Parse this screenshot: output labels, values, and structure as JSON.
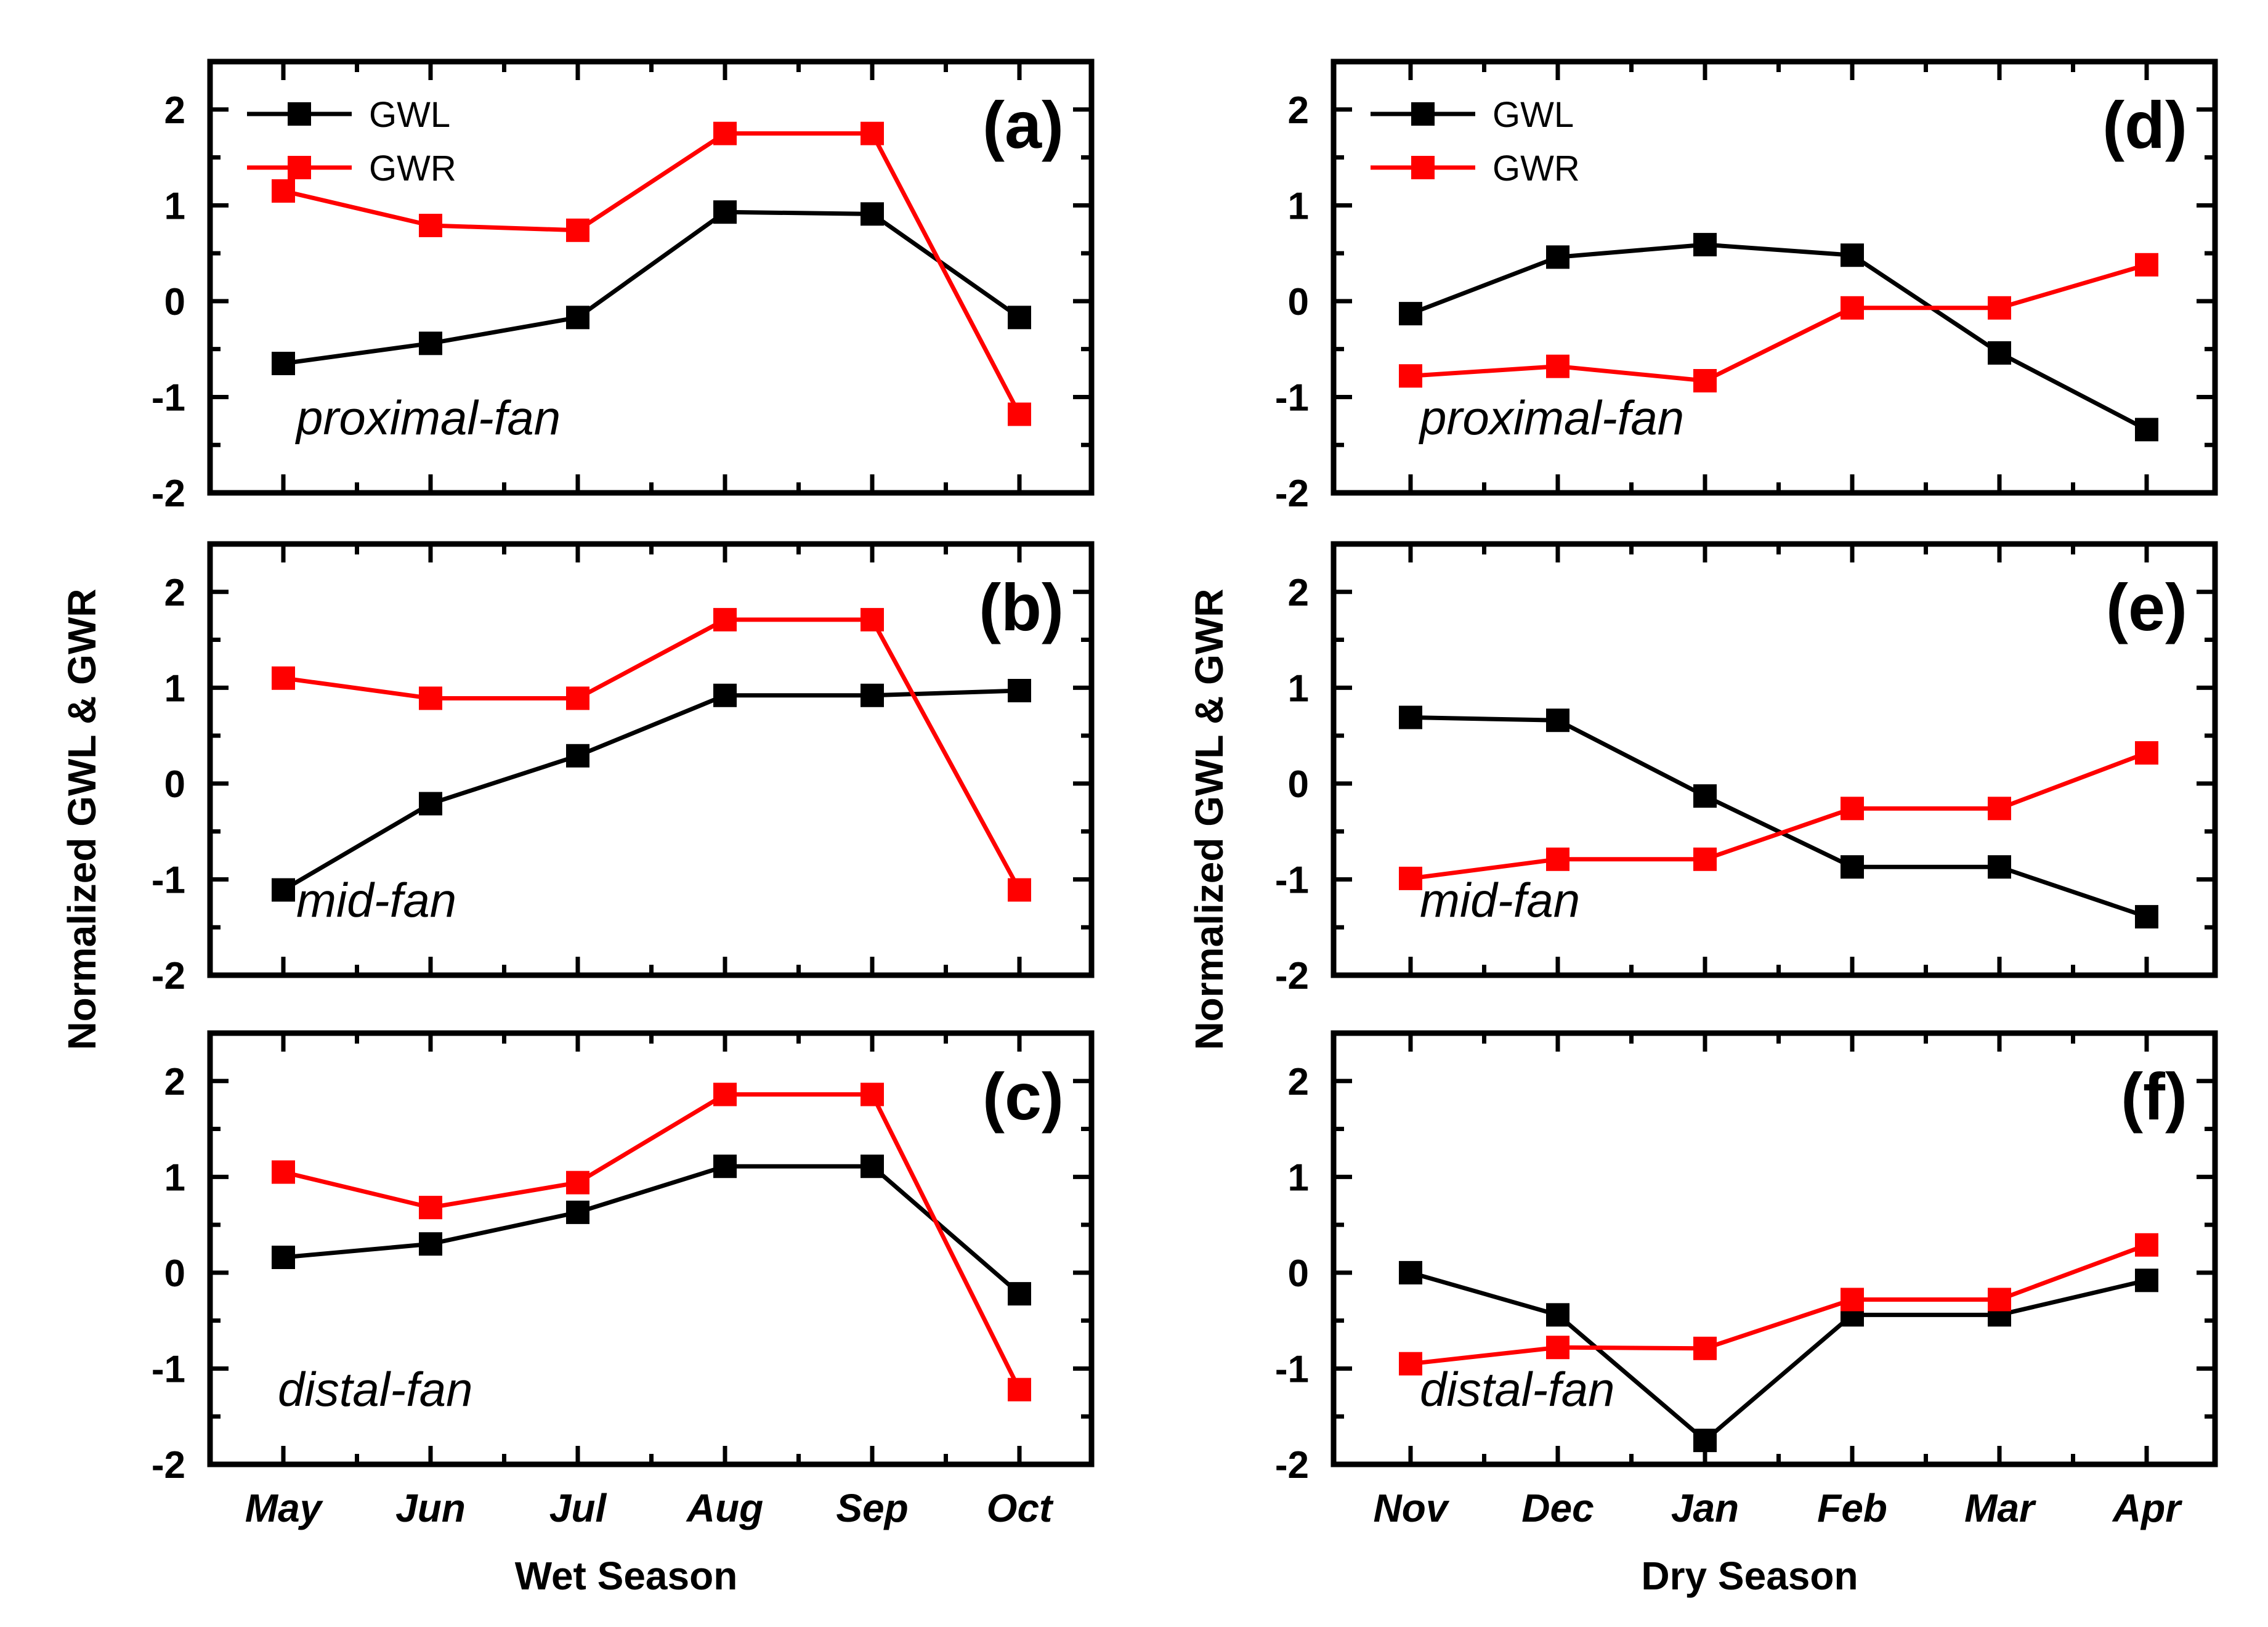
{
  "figure": {
    "ylabel": "Normalized GWL & GWR",
    "ylim": [
      -2,
      2.5
    ],
    "yticks": [
      -2,
      -1,
      0,
      1,
      2
    ],
    "colors": {
      "GWL": "#000000",
      "GWR": "#ff0000"
    }
  },
  "columns": [
    {
      "xlabel": "Wet Season",
      "months": [
        "May",
        "Jun",
        "Jul",
        "Aug",
        "Sep",
        "Oct"
      ]
    },
    {
      "xlabel": "Dry Season",
      "months": [
        "Nov",
        "Dec",
        "Jan",
        "Feb",
        "Mar",
        "Apr"
      ]
    }
  ],
  "chart_data": [
    {
      "type": "line",
      "panel": "(a)",
      "region": "proximal-fan",
      "column": 0,
      "row": 0,
      "legend": true,
      "categories": [
        "May",
        "Jun",
        "Jul",
        "Aug",
        "Sep",
        "Oct"
      ],
      "series": [
        {
          "name": "GWL",
          "values": [
            -0.65,
            -0.44,
            -0.17,
            0.93,
            0.91,
            -0.17
          ]
        },
        {
          "name": "GWR",
          "values": [
            1.15,
            0.79,
            0.74,
            1.75,
            1.75,
            -1.18
          ]
        }
      ]
    },
    {
      "type": "line",
      "panel": "(b)",
      "region": "mid-fan",
      "column": 0,
      "row": 1,
      "legend": false,
      "categories": [
        "May",
        "Jun",
        "Jul",
        "Aug",
        "Sep",
        "Oct"
      ],
      "series": [
        {
          "name": "GWL",
          "values": [
            -1.11,
            -0.21,
            0.29,
            0.92,
            0.92,
            0.97
          ]
        },
        {
          "name": "GWR",
          "values": [
            1.1,
            0.89,
            0.89,
            1.71,
            1.71,
            -1.11
          ]
        }
      ]
    },
    {
      "type": "line",
      "panel": "(c)",
      "region": "distal-fan",
      "column": 0,
      "row": 2,
      "legend": false,
      "categories": [
        "May",
        "Jun",
        "Jul",
        "Aug",
        "Sep",
        "Oct"
      ],
      "series": [
        {
          "name": "GWL",
          "values": [
            0.16,
            0.3,
            0.63,
            1.11,
            1.11,
            -0.22
          ]
        },
        {
          "name": "GWR",
          "values": [
            1.05,
            0.68,
            0.94,
            1.86,
            1.86,
            -1.22
          ]
        }
      ]
    },
    {
      "type": "line",
      "panel": "(d)",
      "region": "proximal-fan",
      "column": 1,
      "row": 0,
      "legend": true,
      "categories": [
        "Nov",
        "Dec",
        "Jan",
        "Feb",
        "Mar",
        "Apr"
      ],
      "series": [
        {
          "name": "GWL",
          "values": [
            -0.13,
            0.46,
            0.59,
            0.48,
            -0.54,
            -1.34
          ]
        },
        {
          "name": "GWR",
          "values": [
            -0.78,
            -0.68,
            -0.83,
            -0.07,
            -0.07,
            0.38
          ]
        }
      ]
    },
    {
      "type": "line",
      "panel": "(e)",
      "region": "mid-fan",
      "column": 1,
      "row": 1,
      "legend": false,
      "categories": [
        "Nov",
        "Dec",
        "Jan",
        "Feb",
        "Mar",
        "Apr"
      ],
      "series": [
        {
          "name": "GWL",
          "values": [
            0.69,
            0.66,
            -0.13,
            -0.87,
            -0.87,
            -1.39
          ]
        },
        {
          "name": "GWR",
          "values": [
            -0.99,
            -0.79,
            -0.79,
            -0.26,
            -0.26,
            0.32
          ]
        }
      ]
    },
    {
      "type": "line",
      "panel": "(f)",
      "region": "distal-fan",
      "column": 1,
      "row": 2,
      "legend": false,
      "categories": [
        "Nov",
        "Dec",
        "Jan",
        "Feb",
        "Mar",
        "Apr"
      ],
      "series": [
        {
          "name": "GWL",
          "values": [
            0.0,
            -0.44,
            -1.75,
            -0.44,
            -0.44,
            -0.08
          ]
        },
        {
          "name": "GWR",
          "values": [
            -0.95,
            -0.78,
            -0.79,
            -0.28,
            -0.28,
            0.29
          ]
        }
      ]
    }
  ]
}
